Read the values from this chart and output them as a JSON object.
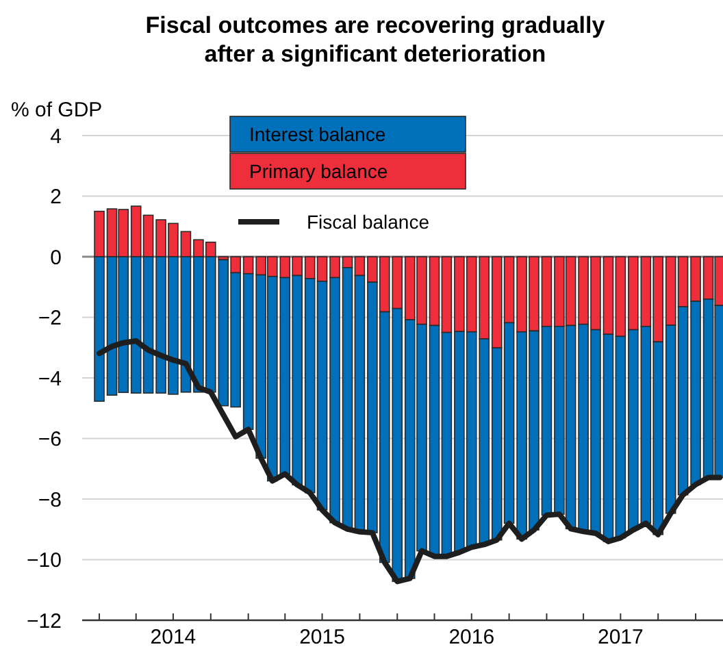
{
  "chart_data": {
    "type": "bar",
    "title": "Fiscal outcomes are recovering gradually\nafter a significant deterioration",
    "ylabel": "% of GDP",
    "stacked": true,
    "legend": "top",
    "grid": "y",
    "x": [
      "2014-01",
      "2014-02",
      "2014-03",
      "2014-04",
      "2014-05",
      "2014-06",
      "2014-07",
      "2014-08",
      "2014-09",
      "2014-10",
      "2014-11",
      "2014-12",
      "2015-01",
      "2015-02",
      "2015-03",
      "2015-04",
      "2015-05",
      "2015-06",
      "2015-07",
      "2015-08",
      "2015-09",
      "2015-10",
      "2015-11",
      "2015-12",
      "2016-01",
      "2016-02",
      "2016-03",
      "2016-04",
      "2016-05",
      "2016-06",
      "2016-07",
      "2016-08",
      "2016-09",
      "2016-10",
      "2016-11",
      "2016-12",
      "2017-01",
      "2017-02",
      "2017-03",
      "2017-04",
      "2017-05",
      "2017-06",
      "2017-07",
      "2017-08",
      "2017-09",
      "2017-10",
      "2017-11",
      "2017-12",
      "2018-01",
      "2018-02",
      "2018-03"
    ],
    "xlim": [
      "2013-11-20",
      "2018-03-09"
    ],
    "xticks": [
      {
        "value": "2014-01",
        "label": null
      },
      {
        "value": "2014-04",
        "label": null
      },
      {
        "value": "2014-07",
        "label": "2014"
      },
      {
        "value": "2014-10",
        "label": null
      },
      {
        "value": "2015-01",
        "label": null
      },
      {
        "value": "2015-04",
        "label": null
      },
      {
        "value": "2015-07",
        "label": "2015"
      },
      {
        "value": "2015-10",
        "label": null
      },
      {
        "value": "2016-01",
        "label": null
      },
      {
        "value": "2016-04",
        "label": null
      },
      {
        "value": "2016-07",
        "label": "2016"
      },
      {
        "value": "2016-10",
        "label": null
      },
      {
        "value": "2017-01",
        "label": null
      },
      {
        "value": "2017-04",
        "label": null
      },
      {
        "value": "2017-07",
        "label": "2017"
      },
      {
        "value": "2017-10",
        "label": null
      },
      {
        "value": "2018-01",
        "label": null
      }
    ],
    "ylim": [
      -12,
      4
    ],
    "yticks": [
      -12,
      -10,
      -8,
      -6,
      -4,
      -2,
      0,
      2,
      4
    ],
    "series": [
      {
        "name": "Primary balance",
        "color": "#ee2e3a",
        "values": [
          1.5,
          1.58,
          1.56,
          1.67,
          1.37,
          1.22,
          1.1,
          0.83,
          0.56,
          0.48,
          -0.1,
          -0.53,
          -0.56,
          -0.6,
          -0.65,
          -0.69,
          -0.62,
          -0.72,
          -0.81,
          -0.69,
          -0.36,
          -0.62,
          -0.84,
          -1.82,
          -1.71,
          -2.08,
          -2.23,
          -2.27,
          -2.5,
          -2.47,
          -2.48,
          -2.71,
          -3.01,
          -2.18,
          -2.48,
          -2.45,
          -2.3,
          -2.3,
          -2.27,
          -2.23,
          -2.41,
          -2.56,
          -2.63,
          -2.41,
          -2.3,
          -2.81,
          -2.26,
          -1.65,
          -1.47,
          -1.4,
          -1.61
        ]
      },
      {
        "name": "Interest balance",
        "color": "#0070ba",
        "values": [
          -4.77,
          -4.57,
          -4.48,
          -4.5,
          -4.5,
          -4.5,
          -4.54,
          -4.47,
          -4.47,
          -4.47,
          -4.82,
          -4.43,
          -5.14,
          -6.05,
          -6.75,
          -6.48,
          -6.91,
          -7.07,
          -7.55,
          -8.09,
          -8.63,
          -8.46,
          -8.27,
          -8.27,
          -9.01,
          -8.54,
          -7.48,
          -7.62,
          -7.39,
          -7.29,
          -7.11,
          -6.79,
          -6.34,
          -6.62,
          -6.84,
          -6.57,
          -6.23,
          -6.2,
          -6.71,
          -6.84,
          -6.72,
          -6.84,
          -6.65,
          -6.61,
          -6.5,
          -6.36,
          -6.21,
          -6.21,
          -6.05,
          -5.89,
          -5.68
        ]
      },
      {
        "name": "Fiscal balance",
        "type": "line",
        "color": "#1e1e1e",
        "values": [
          -3.19,
          -2.96,
          -2.84,
          -2.78,
          -3.08,
          -3.26,
          -3.41,
          -3.53,
          -4.32,
          -4.47,
          -5.22,
          -5.94,
          -5.7,
          -6.65,
          -7.4,
          -7.17,
          -7.53,
          -7.79,
          -8.36,
          -8.78,
          -8.99,
          -9.08,
          -9.11,
          -10.09,
          -10.72,
          -10.62,
          -9.71,
          -9.89,
          -9.89,
          -9.76,
          -9.59,
          -9.5,
          -9.35,
          -8.8,
          -9.32,
          -9.02,
          -8.53,
          -8.5,
          -8.98,
          -9.07,
          -9.13,
          -9.4,
          -9.28,
          -9.02,
          -8.8,
          -9.17,
          -8.47,
          -7.86,
          -7.52,
          -7.29,
          -7.29
        ]
      }
    ]
  }
}
